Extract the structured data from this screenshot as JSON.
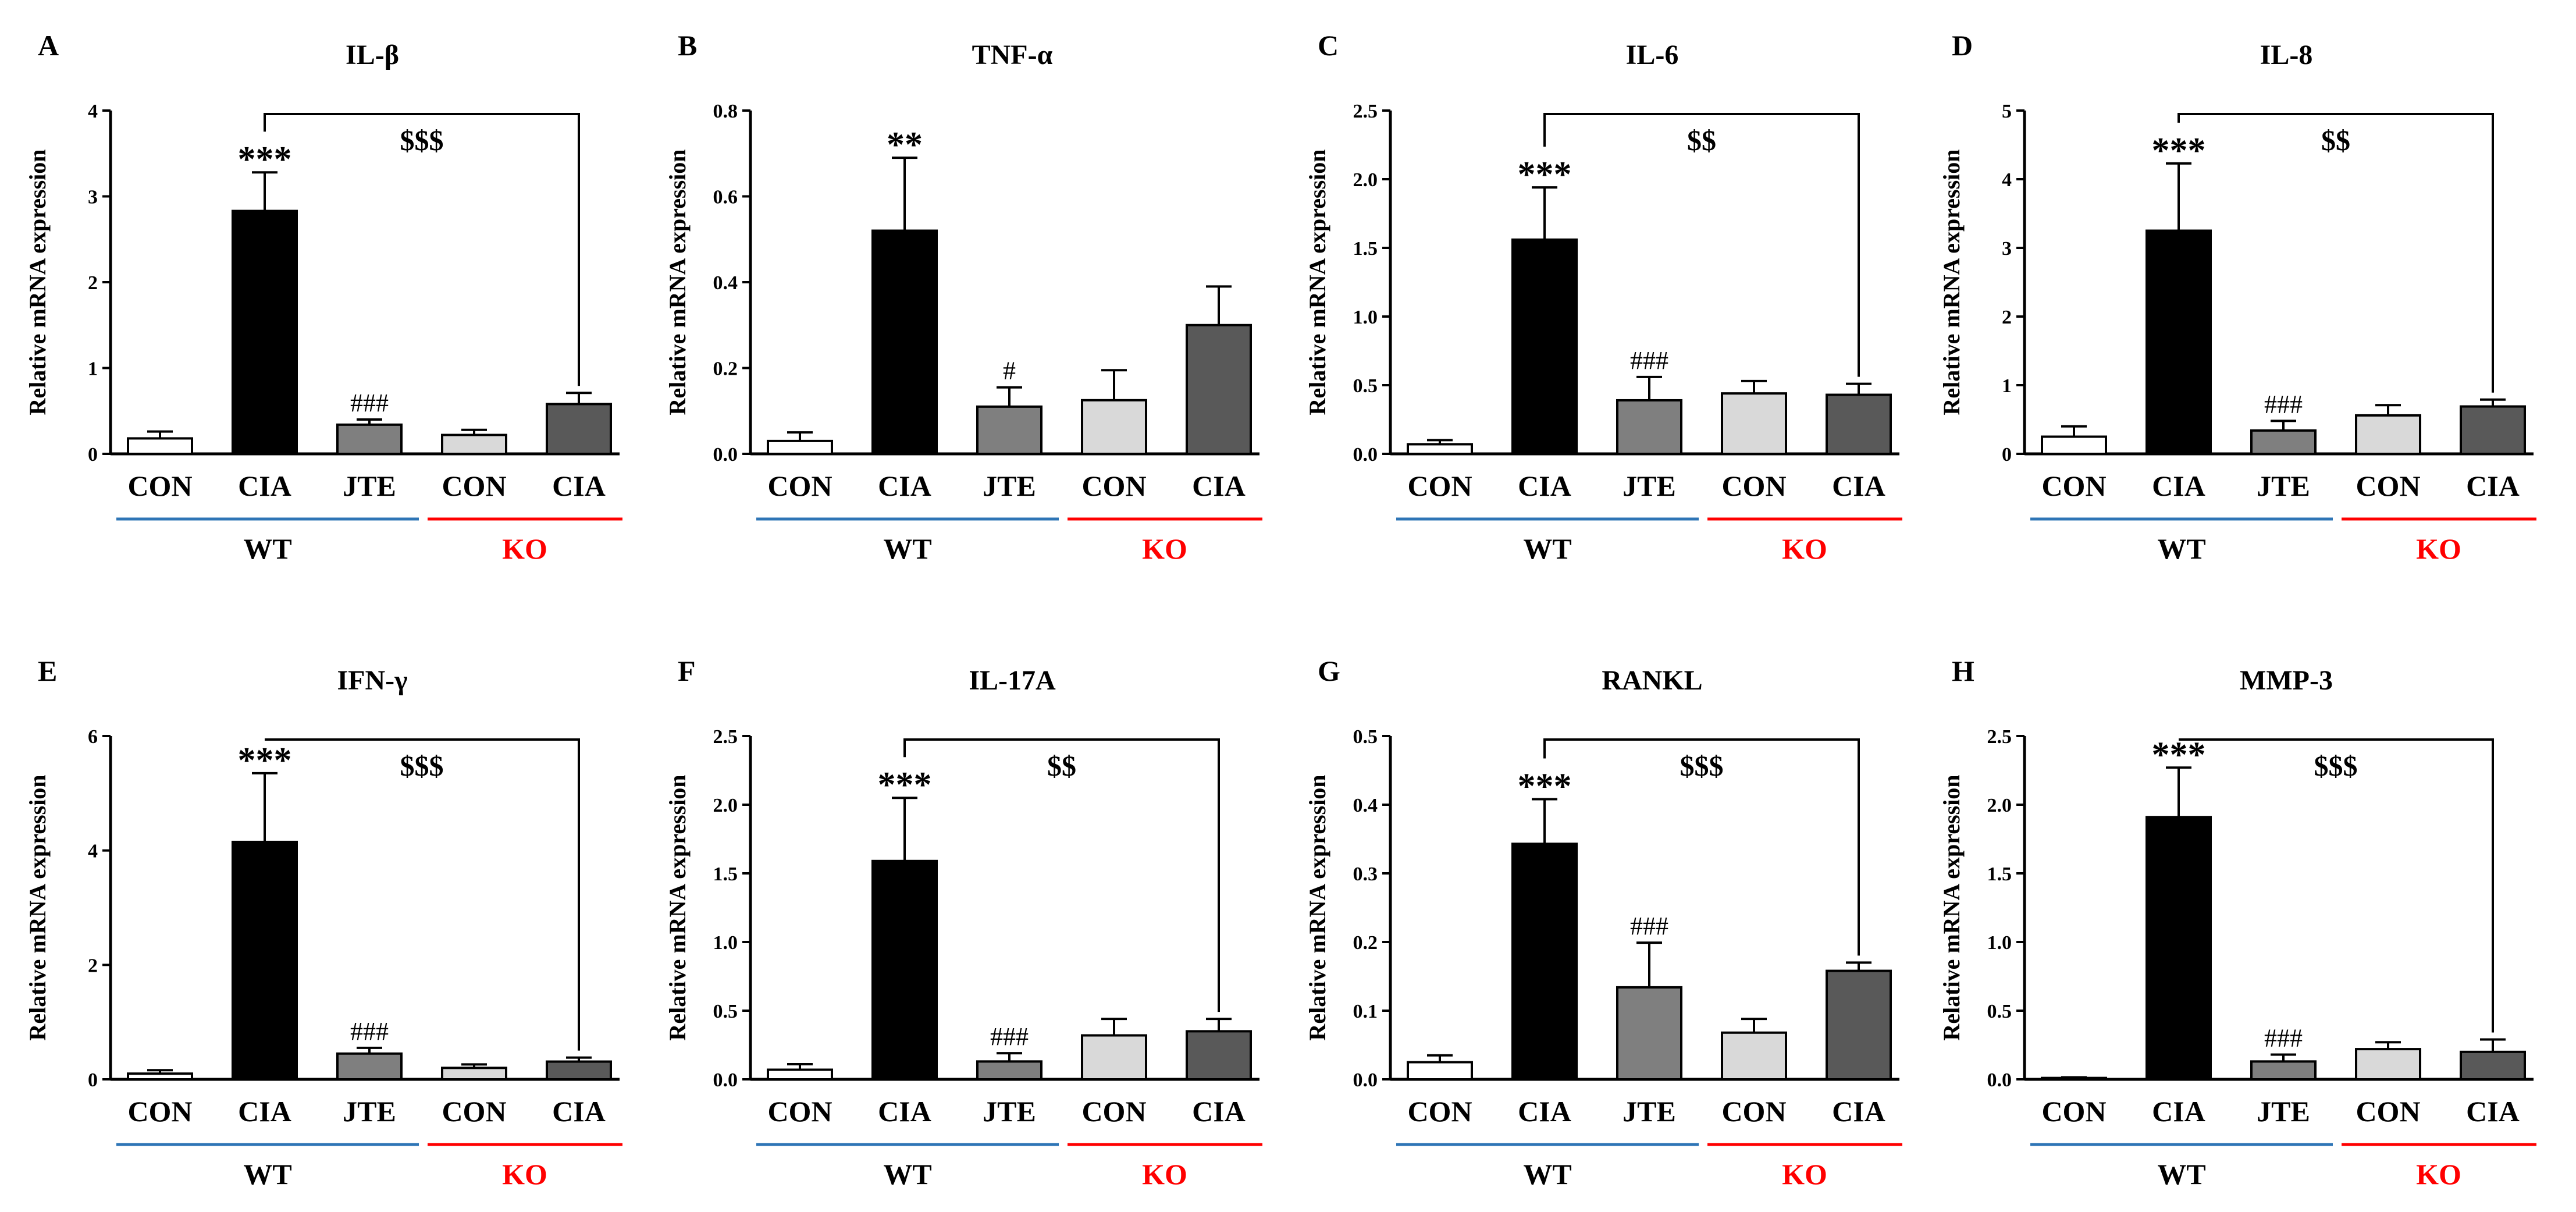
{
  "figure": {
    "ylabel": "Relative mRNA expression",
    "group_wt": "WT",
    "group_ko": "KO",
    "colors": {
      "axis": "#000000",
      "wt_line": "#2e75b6",
      "ko_line": "#ff0000",
      "ko_text": "#ff0000",
      "bar_colors": [
        "#ffffff",
        "#000000",
        "#7f7f7f",
        "#d9d9d9",
        "#595959"
      ]
    }
  },
  "chart_data": [
    {
      "panel": "A",
      "title": "IL-β",
      "type": "bar",
      "categories": [
        "CON",
        "CIA",
        "JTE",
        "CON",
        "CIA"
      ],
      "values": [
        0.18,
        2.83,
        0.34,
        0.22,
        0.58
      ],
      "errors": [
        0.08,
        0.45,
        0.06,
        0.06,
        0.13
      ],
      "ylim": [
        0,
        4
      ],
      "yticks": [
        "0",
        "1",
        "2",
        "3",
        "4"
      ],
      "ytick_values": [
        0,
        1,
        2,
        3,
        4
      ],
      "marks": [
        "",
        "***",
        "###",
        "",
        ""
      ],
      "bracket": "$$$"
    },
    {
      "panel": "B",
      "title": "TNF-α",
      "type": "bar",
      "categories": [
        "CON",
        "CIA",
        "JTE",
        "CON",
        "CIA"
      ],
      "values": [
        0.03,
        0.52,
        0.11,
        0.125,
        0.3
      ],
      "errors": [
        0.02,
        0.17,
        0.045,
        0.07,
        0.09
      ],
      "ylim": [
        0,
        0.8
      ],
      "yticks": [
        "0.0",
        "0.2",
        "0.4",
        "0.6",
        "0.8"
      ],
      "ytick_values": [
        0,
        0.2,
        0.4,
        0.6,
        0.8
      ],
      "marks": [
        "",
        "**",
        "#",
        "",
        ""
      ],
      "bracket": ""
    },
    {
      "panel": "C",
      "title": "IL-6",
      "type": "bar",
      "categories": [
        "CON",
        "CIA",
        "JTE",
        "CON",
        "CIA"
      ],
      "values": [
        0.07,
        1.56,
        0.39,
        0.44,
        0.43
      ],
      "errors": [
        0.03,
        0.38,
        0.17,
        0.09,
        0.08
      ],
      "ylim": [
        0,
        2.5
      ],
      "yticks": [
        "0.0",
        "0.5",
        "1.0",
        "1.5",
        "2.0",
        "2.5"
      ],
      "ytick_values": [
        0,
        0.5,
        1,
        1.5,
        2,
        2.5
      ],
      "marks": [
        "",
        "***",
        "###",
        "",
        ""
      ],
      "bracket": "$$"
    },
    {
      "panel": "D",
      "title": "IL-8",
      "type": "bar",
      "categories": [
        "CON",
        "CIA",
        "JTE",
        "CON",
        "CIA"
      ],
      "values": [
        0.25,
        3.25,
        0.34,
        0.56,
        0.69
      ],
      "errors": [
        0.15,
        0.98,
        0.14,
        0.15,
        0.1
      ],
      "ylim": [
        0,
        5
      ],
      "yticks": [
        "0",
        "1",
        "2",
        "3",
        "4",
        "5"
      ],
      "ytick_values": [
        0,
        1,
        2,
        3,
        4,
        5
      ],
      "marks": [
        "",
        "***",
        "###",
        "",
        ""
      ],
      "bracket": "$$"
    },
    {
      "panel": "E",
      "title": "IFN-γ",
      "type": "bar",
      "categories": [
        "CON",
        "CIA",
        "JTE",
        "CON",
        "CIA"
      ],
      "values": [
        0.1,
        4.15,
        0.45,
        0.2,
        0.31
      ],
      "errors": [
        0.06,
        1.2,
        0.1,
        0.06,
        0.07
      ],
      "ylim": [
        0,
        6
      ],
      "yticks": [
        "0",
        "2",
        "4",
        "6"
      ],
      "ytick_values": [
        0,
        2,
        4,
        6
      ],
      "marks": [
        "",
        "***",
        "###",
        "",
        ""
      ],
      "bracket": "$$$"
    },
    {
      "panel": "F",
      "title": "IL-17A",
      "type": "bar",
      "categories": [
        "CON",
        "CIA",
        "JTE",
        "CON",
        "CIA"
      ],
      "values": [
        0.07,
        1.59,
        0.13,
        0.32,
        0.35
      ],
      "errors": [
        0.04,
        0.46,
        0.06,
        0.12,
        0.09
      ],
      "ylim": [
        0,
        2.5
      ],
      "yticks": [
        "0.0",
        "0.5",
        "1.0",
        "1.5",
        "2.0",
        "2.5"
      ],
      "ytick_values": [
        0,
        0.5,
        1,
        1.5,
        2,
        2.5
      ],
      "marks": [
        "",
        "***",
        "###",
        "",
        ""
      ],
      "bracket": "$$"
    },
    {
      "panel": "G",
      "title": "RANKL",
      "type": "bar",
      "categories": [
        "CON",
        "CIA",
        "JTE",
        "CON",
        "CIA"
      ],
      "values": [
        0.025,
        0.343,
        0.134,
        0.068,
        0.158
      ],
      "errors": [
        0.01,
        0.065,
        0.065,
        0.02,
        0.012
      ],
      "ylim": [
        0,
        0.5
      ],
      "yticks": [
        "0.0",
        "0.1",
        "0.2",
        "0.3",
        "0.4",
        "0.5"
      ],
      "ytick_values": [
        0,
        0.1,
        0.2,
        0.3,
        0.4,
        0.5
      ],
      "marks": [
        "",
        "***",
        "###",
        "",
        ""
      ],
      "bracket": "$$$"
    },
    {
      "panel": "H",
      "title": "MMP-3",
      "type": "bar",
      "categories": [
        "CON",
        "CIA",
        "JTE",
        "CON",
        "CIA"
      ],
      "values": [
        0.01,
        1.91,
        0.13,
        0.22,
        0.2
      ],
      "errors": [
        0.005,
        0.36,
        0.05,
        0.05,
        0.09
      ],
      "ylim": [
        0,
        2.5
      ],
      "yticks": [
        "0.0",
        "0.5",
        "1.0",
        "1.5",
        "2.0",
        "2.5"
      ],
      "ytick_values": [
        0,
        0.5,
        1,
        1.5,
        2,
        2.5
      ],
      "marks": [
        "",
        "***",
        "###",
        "",
        ""
      ],
      "bracket": "$$$"
    }
  ]
}
